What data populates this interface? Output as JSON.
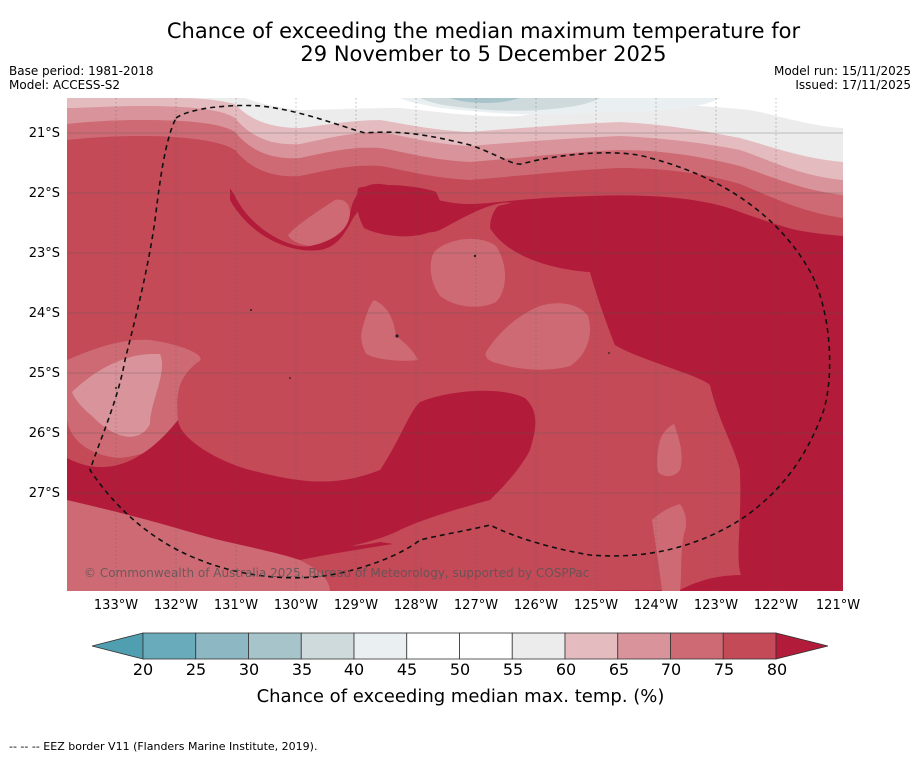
{
  "title": {
    "line1": "Chance of exceeding the median maximum temperature for",
    "line2": "29 November to 5 December 2025"
  },
  "meta": {
    "base_period": "Base period: 1981-2018",
    "model": "Model: ACCESS-S2",
    "model_run": "Model run: 15/11/2025",
    "issued": "Issued: 17/11/2025"
  },
  "map": {
    "latitude_labels": [
      "21°S",
      "22°S",
      "23°S",
      "24°S",
      "25°S",
      "26°S",
      "27°S"
    ],
    "longitude_labels": [
      "133°W",
      "132°W",
      "131°W",
      "130°W",
      "129°W",
      "128°W",
      "127°W",
      "126°W",
      "125°W",
      "124°W",
      "123°W",
      "122°W",
      "121°W"
    ],
    "copyright": "© Commonwealth of Australia 2025, Bureau of Meteorology, supported by COSPPac",
    "colors": {
      "c80plus": "#b21c3a",
      "c75": "#c44a58",
      "c70": "#ce6a74",
      "c65": "#d9939a",
      "c60": "#e4bcc0",
      "c55": "#ececec",
      "c45": "#ffffff",
      "c40": "#eaf0f2",
      "c35": "#cfdadd",
      "c30": "#a8c4cb"
    }
  },
  "colorbar": {
    "ticks": [
      "20",
      "25",
      "30",
      "35",
      "40",
      "45",
      "50",
      "55",
      "60",
      "65",
      "70",
      "75",
      "80"
    ],
    "colors": [
      "#6aabbb",
      "#8db7c3",
      "#a8c4cb",
      "#cfdadd",
      "#eaf0f2",
      "#ffffff",
      "#ffffff",
      "#ececec",
      "#e4bcc0",
      "#d9939a",
      "#ce6a74",
      "#c44a58"
    ],
    "under_color": "#4f9fb0",
    "over_color": "#b21c3a",
    "label": "Chance of exceeding median max. temp. (%)"
  },
  "footer": {
    "legend": "--  --  -- EEZ border V11 (Flanders Marine Institute, 2019)."
  }
}
